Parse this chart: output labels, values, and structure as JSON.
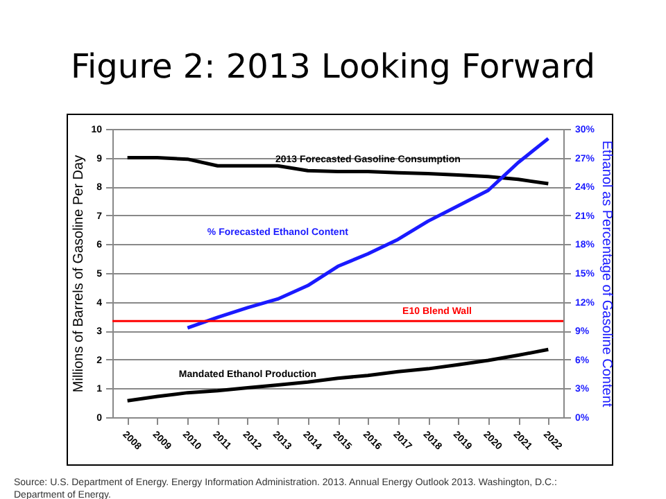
{
  "chart_data": {
    "type": "line",
    "title": "Figure 2: 2013 Looking Forward",
    "categories": [
      "2008",
      "2009",
      "2010",
      "2011",
      "2012",
      "2013",
      "2014",
      "2015",
      "2016",
      "2017",
      "2018",
      "2019",
      "2020",
      "2021",
      "2022"
    ],
    "series": [
      {
        "name": "2013 Forecasted Gasoline Consumption",
        "color": "#000000",
        "values": [
          9.0,
          9.0,
          8.95,
          8.72,
          8.72,
          8.72,
          8.55,
          8.52,
          8.52,
          8.48,
          8.45,
          8.4,
          8.35,
          8.25,
          8.1
        ]
      },
      {
        "name": "Mandated Ethanol Production",
        "color": "#000000",
        "values": [
          0.57,
          0.72,
          0.85,
          0.92,
          1.02,
          1.12,
          1.22,
          1.35,
          1.45,
          1.58,
          1.68,
          1.82,
          1.97,
          2.15,
          2.35
        ]
      },
      {
        "name": "% Forecasted Ethanol Content",
        "color": "#1a1aff",
        "axis": "y2",
        "values": [
          null,
          null,
          9.3,
          10.4,
          11.4,
          12.3,
          13.7,
          15.7,
          17.0,
          18.5,
          20.4,
          22.0,
          23.6,
          26.5,
          29.0
        ]
      }
    ],
    "ylabel": "Millions of Barrels of Gasoline Per Day",
    "y2label": "Ethanol as Percentage of Gasoline Content",
    "ylim": [
      0,
      10
    ],
    "yticks": [
      0,
      1,
      2,
      3,
      4,
      5,
      6,
      7,
      8,
      9,
      10
    ],
    "y2lim": [
      0,
      30
    ],
    "y2ticks": [
      {
        "value": 0,
        "label": "0%"
      },
      {
        "value": 3,
        "label": "3%"
      },
      {
        "value": 6,
        "label": "6%"
      },
      {
        "value": 9,
        "label": "9%"
      },
      {
        "value": 12,
        "label": "12%"
      },
      {
        "value": 15,
        "label": "15%"
      },
      {
        "value": 18,
        "label": "18%"
      },
      {
        "value": 21,
        "label": "21%"
      },
      {
        "value": 24,
        "label": "24%"
      },
      {
        "value": 27,
        "label": "27%"
      },
      {
        "value": 30,
        "label": "30%"
      }
    ],
    "ref_lines": [
      {
        "axis": "y2",
        "value": 10,
        "label": "E10 Blend Wall",
        "color": "#ff0000"
      }
    ],
    "grid": "y",
    "legend": false,
    "marker": "none",
    "line_style": "solid",
    "annotations": [
      "Source: U.S. Department of Energy. Energy Information Administration. 2013. Annual Energy Outlook 2013. Washington, D.C.: Department of Energy."
    ]
  }
}
